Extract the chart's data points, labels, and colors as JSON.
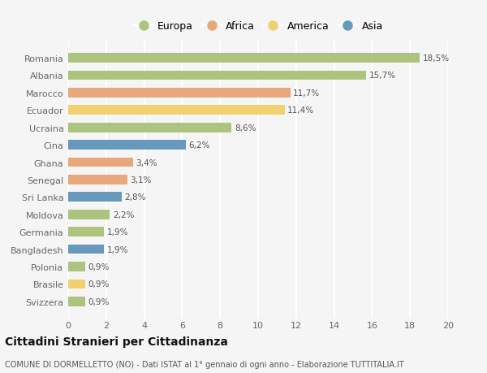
{
  "countries": [
    "Svizzera",
    "Brasile",
    "Polonia",
    "Bangladesh",
    "Germania",
    "Moldova",
    "Sri Lanka",
    "Senegal",
    "Ghana",
    "Cina",
    "Ucraina",
    "Ecuador",
    "Marocco",
    "Albania",
    "Romania"
  ],
  "values": [
    0.9,
    0.9,
    0.9,
    1.9,
    1.9,
    2.2,
    2.8,
    3.1,
    3.4,
    6.2,
    8.6,
    11.4,
    11.7,
    15.7,
    18.5
  ],
  "continents": [
    "Europa",
    "America",
    "Europa",
    "Asia",
    "Europa",
    "Europa",
    "Asia",
    "Africa",
    "Africa",
    "Asia",
    "Europa",
    "America",
    "Africa",
    "Europa",
    "Europa"
  ],
  "continent_colors": {
    "Europa": "#adc47e",
    "Africa": "#e8a87c",
    "America": "#f0d070",
    "Asia": "#6699bb"
  },
  "labels": [
    "0,9%",
    "0,9%",
    "0,9%",
    "1,9%",
    "1,9%",
    "2,2%",
    "2,8%",
    "3,1%",
    "3,4%",
    "6,2%",
    "8,6%",
    "11,4%",
    "11,7%",
    "15,7%",
    "18,5%"
  ],
  "xlim": [
    0,
    20
  ],
  "xticks": [
    0,
    2,
    4,
    6,
    8,
    10,
    12,
    14,
    16,
    18,
    20
  ],
  "title": "Cittadini Stranieri per Cittadinanza",
  "subtitle": "COMUNE DI DORMELLETTO (NO) - Dati ISTAT al 1° gennaio di ogni anno - Elaborazione TUTTITALIA.IT",
  "legend_order": [
    "Europa",
    "Africa",
    "America",
    "Asia"
  ],
  "background_color": "#f5f5f5",
  "grid_color": "#ffffff",
  "bar_height": 0.55,
  "label_fontsize": 7.5,
  "tick_fontsize": 8,
  "title_fontsize": 10,
  "subtitle_fontsize": 7,
  "legend_fontsize": 9
}
